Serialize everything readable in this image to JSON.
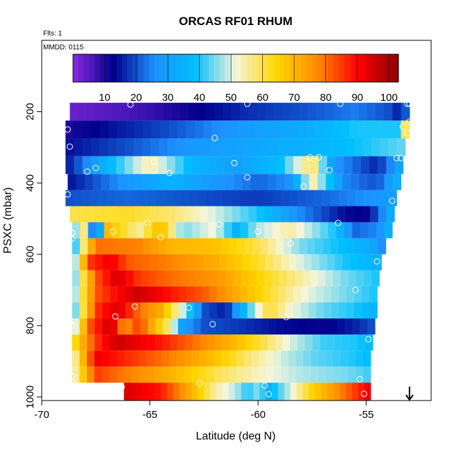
{
  "chart_data": {
    "type": "heatmap",
    "title": "ORCAS RF01 RHUM",
    "annotations": [
      "Flts: 1",
      "MMDD: 0115"
    ],
    "xlabel": "Latitude (deg N)",
    "ylabel": "PSXC (mbar)",
    "xlim": [
      -70,
      -52
    ],
    "ylim": [
      1010,
      0
    ],
    "x_ticks": [
      -70,
      -65,
      -60,
      -55
    ],
    "x_tick_labels": [
      "-70",
      "-65",
      "-60",
      "-55"
    ],
    "y_ticks": [
      200,
      400,
      600,
      800,
      1000
    ],
    "y_tick_labels": [
      "200",
      "400",
      "600",
      "800",
      "1000"
    ],
    "colorbar": {
      "min": 0,
      "max": 103,
      "ticks": [
        10,
        20,
        30,
        40,
        50,
        60,
        70,
        80,
        90,
        100
      ],
      "tick_labels": [
        "10",
        "20",
        "30",
        "40",
        "50",
        "60",
        "70",
        "80",
        "90",
        "100"
      ],
      "colors": [
        "#8a2be2",
        "#00008b",
        "#1e90ff",
        "#00bfff",
        "#f5f5dc",
        "#ffd700",
        "#ff8c00",
        "#ff0000",
        "#8b0000"
      ]
    },
    "bands": [
      {
        "p_top": 175,
        "p_bottom": 225,
        "lat_start": -68.7,
        "lat_end": -53.0,
        "knots": [
          [
            -68.7,
            3
          ],
          [
            -66,
            6
          ],
          [
            -63,
            12
          ],
          [
            -60.5,
            17
          ],
          [
            -58,
            20
          ],
          [
            -55.5,
            24
          ],
          [
            -54,
            20
          ],
          [
            -53.3,
            14
          ],
          [
            -53.05,
            30
          ]
        ]
      },
      {
        "p_top": 225,
        "p_bottom": 275,
        "lat_start": -68.9,
        "lat_end": -53.0,
        "knots": [
          [
            -68.9,
            10
          ],
          [
            -67,
            14
          ],
          [
            -64,
            20
          ],
          [
            -61,
            28
          ],
          [
            -58,
            33
          ],
          [
            -55.5,
            40
          ],
          [
            -53.5,
            40
          ],
          [
            -53.1,
            65
          ]
        ]
      },
      {
        "p_top": 275,
        "p_bottom": 325,
        "lat_start": -68.9,
        "lat_end": -53.2,
        "knots": [
          [
            -68.9,
            14
          ],
          [
            -66,
            20
          ],
          [
            -63,
            28
          ],
          [
            -60,
            32
          ],
          [
            -57,
            36
          ],
          [
            -55,
            40
          ],
          [
            -53.3,
            44
          ]
        ]
      },
      {
        "p_top": 325,
        "p_bottom": 375,
        "lat_start": -68.9,
        "lat_end": -53.3,
        "knots": [
          [
            -68.9,
            14
          ],
          [
            -67.5,
            30
          ],
          [
            -65,
            55
          ],
          [
            -63,
            36
          ],
          [
            -61,
            30
          ],
          [
            -59,
            38
          ],
          [
            -57.5,
            60
          ],
          [
            -56.5,
            28
          ],
          [
            -54.5,
            16
          ],
          [
            -53.4,
            32
          ]
        ]
      },
      {
        "p_top": 375,
        "p_bottom": 420,
        "lat_start": -68.8,
        "lat_end": -53.4,
        "knots": [
          [
            -68.8,
            14
          ],
          [
            -66,
            28
          ],
          [
            -64,
            35
          ],
          [
            -62,
            28
          ],
          [
            -60,
            22
          ],
          [
            -58.5,
            26
          ],
          [
            -57.5,
            55
          ],
          [
            -56,
            25
          ],
          [
            -54.5,
            20
          ],
          [
            -53.5,
            35
          ]
        ]
      },
      {
        "p_top": 420,
        "p_bottom": 465,
        "lat_start": -68.9,
        "lat_end": -53.6,
        "knots": [
          [
            -68.9,
            20
          ],
          [
            -66,
            22
          ],
          [
            -63,
            20
          ],
          [
            -60,
            18
          ],
          [
            -57,
            22
          ],
          [
            -55,
            26
          ],
          [
            -53.7,
            30
          ]
        ]
      },
      {
        "p_top": 465,
        "p_bottom": 510,
        "lat_start": -68.7,
        "lat_end": -53.7,
        "knots": [
          [
            -68.7,
            60
          ],
          [
            -66,
            62
          ],
          [
            -64,
            58
          ],
          [
            -62,
            50
          ],
          [
            -60,
            40
          ],
          [
            -58,
            25
          ],
          [
            -56,
            14
          ],
          [
            -55,
            12
          ],
          [
            -54.5,
            20
          ],
          [
            -53.8,
            35
          ]
        ]
      },
      {
        "p_top": 510,
        "p_bottom": 555,
        "lat_start": -68.6,
        "lat_end": -53.8,
        "knots": [
          [
            -68.6,
            42
          ],
          [
            -68,
            58
          ],
          [
            -67.5,
            8
          ],
          [
            -67,
            70
          ],
          [
            -65.5,
            55
          ],
          [
            -64.5,
            70
          ],
          [
            -63.5,
            45
          ],
          [
            -62,
            52
          ],
          [
            -61,
            35
          ],
          [
            -60,
            48
          ],
          [
            -58.5,
            55
          ],
          [
            -56.5,
            40
          ],
          [
            -55.5,
            22
          ],
          [
            -54.5,
            25
          ],
          [
            -53.9,
            35
          ]
        ]
      },
      {
        "p_top": 555,
        "p_bottom": 600,
        "lat_start": -68.6,
        "lat_end": -54.1,
        "knots": [
          [
            -68.6,
            35
          ],
          [
            -67.5,
            80
          ],
          [
            -65.5,
            78
          ],
          [
            -64,
            70
          ],
          [
            -62,
            68
          ],
          [
            -60,
            60
          ],
          [
            -58,
            45
          ],
          [
            -56,
            38
          ],
          [
            -54.7,
            32
          ],
          [
            -54.2,
            25
          ]
        ]
      },
      {
        "p_top": 600,
        "p_bottom": 645,
        "lat_start": -68.6,
        "lat_end": -54.3,
        "knots": [
          [
            -68.6,
            38
          ],
          [
            -67.8,
            85
          ],
          [
            -66.8,
            92
          ],
          [
            -66,
            82
          ],
          [
            -64,
            78
          ],
          [
            -62,
            72
          ],
          [
            -60,
            62
          ],
          [
            -58,
            50
          ],
          [
            -56,
            40
          ],
          [
            -54.5,
            35
          ]
        ]
      },
      {
        "p_top": 645,
        "p_bottom": 690,
        "lat_start": -68.6,
        "lat_end": -54.4,
        "knots": [
          [
            -68.6,
            40
          ],
          [
            -67.5,
            82
          ],
          [
            -66.5,
            95
          ],
          [
            -65.5,
            85
          ],
          [
            -64,
            80
          ],
          [
            -62,
            76
          ],
          [
            -60,
            65
          ],
          [
            -58,
            55
          ],
          [
            -56,
            45
          ],
          [
            -54.5,
            40
          ]
        ]
      },
      {
        "p_top": 690,
        "p_bottom": 735,
        "lat_start": -68.6,
        "lat_end": -54.5,
        "knots": [
          [
            -68.6,
            42
          ],
          [
            -67.5,
            82
          ],
          [
            -66.5,
            90
          ],
          [
            -65.5,
            96
          ],
          [
            -64,
            88
          ],
          [
            -62.5,
            82
          ],
          [
            -61,
            72
          ],
          [
            -59.5,
            62
          ],
          [
            -58,
            52
          ],
          [
            -56,
            45
          ],
          [
            -54.6,
            40
          ]
        ]
      },
      {
        "p_top": 735,
        "p_bottom": 780,
        "lat_start": -68.6,
        "lat_end": -54.5,
        "knots": [
          [
            -68.6,
            38
          ],
          [
            -67.5,
            85
          ],
          [
            -66.5,
            95
          ],
          [
            -65.5,
            80
          ],
          [
            -64.5,
            72
          ],
          [
            -63.5,
            50
          ],
          [
            -62.5,
            20
          ],
          [
            -61.5,
            15
          ],
          [
            -60.5,
            40
          ],
          [
            -59.5,
            62
          ],
          [
            -58.5,
            52
          ],
          [
            -57,
            44
          ],
          [
            -55.5,
            40
          ],
          [
            -54.6,
            35
          ]
        ]
      },
      {
        "p_top": 780,
        "p_bottom": 825,
        "lat_start": -68.6,
        "lat_end": -54.6,
        "knots": [
          [
            -68.6,
            42
          ],
          [
            -67.8,
            82
          ],
          [
            -66.8,
            97
          ],
          [
            -66.2,
            75
          ],
          [
            -65.5,
            85
          ],
          [
            -64.8,
            70
          ],
          [
            -64,
            55
          ],
          [
            -63.5,
            30
          ],
          [
            -62.5,
            20
          ],
          [
            -61,
            18
          ],
          [
            -59,
            14
          ],
          [
            -57,
            12
          ],
          [
            -55.5,
            16
          ],
          [
            -54.7,
            20
          ]
        ]
      },
      {
        "p_top": 825,
        "p_bottom": 870,
        "lat_start": -68.6,
        "lat_end": -54.7,
        "knots": [
          [
            -68.6,
            60
          ],
          [
            -67.5,
            85
          ],
          [
            -66.5,
            96
          ],
          [
            -65.5,
            92
          ],
          [
            -64.5,
            88
          ],
          [
            -63,
            80
          ],
          [
            -61.5,
            72
          ],
          [
            -60,
            62
          ],
          [
            -58.5,
            50
          ],
          [
            -57,
            42
          ],
          [
            -55.5,
            40
          ],
          [
            -54.8,
            38
          ]
        ]
      },
      {
        "p_top": 870,
        "p_bottom": 915,
        "lat_start": -68.6,
        "lat_end": -54.8,
        "knots": [
          [
            -68.6,
            50
          ],
          [
            -67.5,
            92
          ],
          [
            -66.5,
            88
          ],
          [
            -65,
            82
          ],
          [
            -63.5,
            76
          ],
          [
            -62,
            68
          ],
          [
            -60.5,
            58
          ],
          [
            -59,
            50
          ],
          [
            -57.5,
            44
          ],
          [
            -55.5,
            40
          ],
          [
            -54.9,
            38
          ]
        ]
      },
      {
        "p_top": 915,
        "p_bottom": 960,
        "lat_start": -68.6,
        "lat_end": -54.8,
        "knots": [
          [
            -68.6,
            50
          ],
          [
            -67.5,
            85
          ],
          [
            -66.5,
            80
          ],
          [
            -65,
            75
          ],
          [
            -63.5,
            68
          ],
          [
            -62,
            60
          ],
          [
            -60,
            53
          ],
          [
            -58,
            48
          ],
          [
            -56,
            45
          ],
          [
            -54.9,
            42
          ]
        ]
      },
      {
        "p_top": 960,
        "p_bottom": 1010,
        "lat_start": -66.2,
        "lat_end": -54.8,
        "knots": [
          [
            -66.2,
            95
          ],
          [
            -65.5,
            92
          ],
          [
            -64.5,
            88
          ],
          [
            -63,
            70
          ],
          [
            -62,
            55
          ],
          [
            -61,
            48
          ],
          [
            -60.5,
            40
          ],
          [
            -60,
            46
          ],
          [
            -59.5,
            35
          ],
          [
            -58.5,
            50
          ],
          [
            -57.5,
            65
          ],
          [
            -56.5,
            75
          ],
          [
            -55.8,
            82
          ],
          [
            -55.2,
            88
          ],
          [
            -54.9,
            92
          ]
        ]
      }
    ],
    "flight_track": {
      "points": [
        [
          -53.1,
          178
        ],
        [
          -53.0,
          178
        ],
        [
          -53.0,
          228
        ],
        [
          -53.1,
          260
        ],
        [
          -53.3,
          242
        ],
        [
          -53.4,
          330
        ],
        [
          -53.6,
          330
        ],
        [
          -53.8,
          450
        ],
        [
          -54.5,
          620
        ],
        [
          -55.5,
          700
        ],
        [
          -54.9,
          838
        ],
        [
          -55.3,
          950
        ],
        [
          -55.1,
          991
        ],
        [
          -59.7,
          968
        ],
        [
          -59.5,
          992
        ],
        [
          -62.7,
          962
        ],
        [
          -66.3,
          972
        ],
        [
          -68.6,
          942
        ],
        [
          -68.6,
          958
        ],
        [
          -68.6,
          800
        ],
        [
          -68.8,
          778
        ],
        [
          -68.6,
          540
        ],
        [
          -68.6,
          556
        ],
        [
          -68.8,
          432
        ],
        [
          -67.5,
          358
        ],
        [
          -67.9,
          368
        ],
        [
          -68.7,
          298
        ],
        [
          -68.8,
          250
        ],
        [
          -65.9,
          180
        ],
        [
          -64.1,
          372
        ],
        [
          -64.8,
          340
        ],
        [
          -62.0,
          274
        ],
        [
          -61.1,
          344
        ],
        [
          -60.5,
          384
        ],
        [
          -60.5,
          178
        ],
        [
          -57.6,
          328
        ],
        [
          -57.2,
          328
        ],
        [
          -56.7,
          364
        ],
        [
          -57.9,
          410
        ],
        [
          -56.2,
          178
        ],
        [
          -56.3,
          512
        ],
        [
          -61.8,
          516
        ],
        [
          -60.0,
          536
        ],
        [
          -58.5,
          570
        ],
        [
          -65.1,
          512
        ],
        [
          -64.5,
          552
        ],
        [
          -66.7,
          536
        ],
        [
          -65.7,
          746
        ],
        [
          -66.6,
          774
        ],
        [
          -63.2,
          750
        ],
        [
          -62.1,
          796
        ],
        [
          -58.7,
          776
        ]
      ]
    },
    "end_marker_lat": -53.0,
    "colors": {
      "track_circle": "#ffffff",
      "frame": "#000000",
      "background": "#ffffff"
    }
  }
}
